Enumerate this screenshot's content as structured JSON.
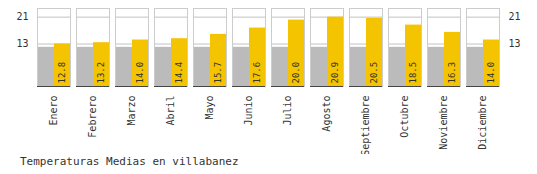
{
  "chart_data": {
    "type": "bar",
    "title": "Temperaturas Medias en villabanez",
    "categories": [
      "Enero",
      "Febrero",
      "Marzo",
      "Abril",
      "Mayo",
      "Junio",
      "Julio",
      "Agosto",
      "Septiembre",
      "Octubre",
      "Noviembre",
      "Diciembre"
    ],
    "series": [
      {
        "color": "#BBBBBB",
        "values": [
          11.8,
          11.8,
          11.8,
          11.8,
          11.8,
          11.8,
          11.8,
          11.8,
          11.8,
          11.8,
          11.8,
          11.8
        ]
      },
      {
        "color": "#F5C400",
        "values": [
          12.8,
          13.2,
          14.0,
          14.4,
          15.7,
          17.6,
          20.0,
          20.9,
          20.5,
          18.5,
          16.3,
          14.0
        ],
        "value_labels": [
          "12.8",
          "13.2",
          "14.0",
          "14.4",
          "15.7",
          "17.6",
          "20.0",
          "20.9",
          "20.5",
          "18.5",
          "16.3",
          "14.0"
        ],
        "data_labels": true
      }
    ],
    "ylim": [
      0.0,
      23.5
    ],
    "yticks": [
      12.8,
      20.9
    ],
    "y2lim": [
      0.0,
      23.5
    ],
    "y2ticks": [
      12.8,
      20.9
    ],
    "grid": true
  }
}
